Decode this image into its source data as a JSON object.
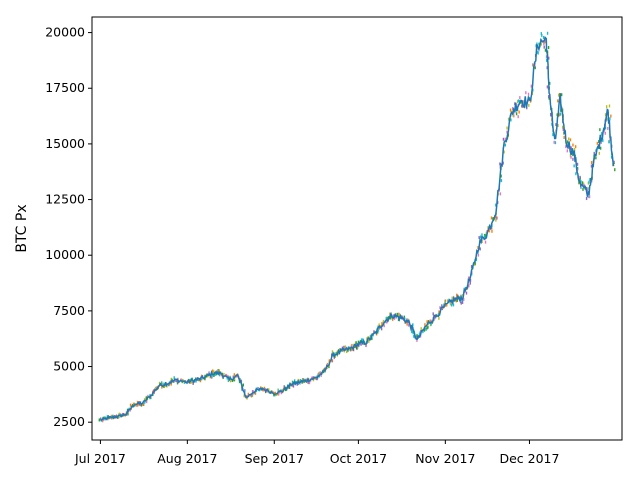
{
  "chart_data": {
    "type": "line",
    "title": "",
    "xlabel": "",
    "ylabel": "BTC Px",
    "x_ticks": [
      "Jul 2017",
      "Aug 2017",
      "Sep 2017",
      "Oct 2017",
      "Nov 2017",
      "Dec 2017"
    ],
    "y_ticks": [
      2500,
      5000,
      7500,
      10000,
      12500,
      15000,
      17500,
      20000
    ],
    "xlim": [
      "2017-06-28",
      "2018-01-03"
    ],
    "ylim": [
      1700,
      20700
    ],
    "grid": false,
    "legend": "none",
    "colors": {
      "main_line": "#1f77b4",
      "scatter_points": [
        "#2ca02c",
        "#ff7f0e",
        "#e377c2",
        "#bcbd22",
        "#17becf",
        "#9467bd"
      ]
    },
    "series": [
      {
        "x": [
          "2017-07-01",
          "2017-07-04",
          "2017-07-07",
          "2017-07-10",
          "2017-07-13",
          "2017-07-16",
          "2017-07-19",
          "2017-07-22",
          "2017-07-25",
          "2017-07-28",
          "2017-08-01",
          "2017-08-04",
          "2017-08-07",
          "2017-08-10",
          "2017-08-13",
          "2017-08-16",
          "2017-08-19",
          "2017-08-22",
          "2017-08-25",
          "2017-08-28",
          "2017-09-01",
          "2017-09-04",
          "2017-09-07",
          "2017-09-10",
          "2017-09-13",
          "2017-09-16",
          "2017-09-19",
          "2017-09-22",
          "2017-09-25",
          "2017-09-28",
          "2017-10-01",
          "2017-10-04",
          "2017-10-07",
          "2017-10-10",
          "2017-10-13",
          "2017-10-16",
          "2017-10-19",
          "2017-10-22",
          "2017-10-25",
          "2017-10-28",
          "2017-11-01",
          "2017-11-04",
          "2017-11-07",
          "2017-11-10",
          "2017-11-13",
          "2017-11-16",
          "2017-11-19",
          "2017-11-22",
          "2017-11-25",
          "2017-11-28",
          "2017-12-01",
          "2017-12-04",
          "2017-12-07",
          "2017-12-08",
          "2017-12-10",
          "2017-12-12",
          "2017-12-14",
          "2017-12-17",
          "2017-12-19",
          "2017-12-22",
          "2017-12-24",
          "2017-12-27",
          "2017-12-29",
          "2017-12-31"
        ],
        "y": [
          2600,
          2700,
          2750,
          2850,
          3300,
          3350,
          3700,
          4150,
          4250,
          4400,
          4300,
          4400,
          4500,
          4700,
          4700,
          4400,
          4600,
          3600,
          3900,
          4000,
          3800,
          3900,
          4200,
          4300,
          4400,
          4500,
          4800,
          5500,
          5700,
          5800,
          6000,
          6100,
          6500,
          7000,
          7300,
          7200,
          7000,
          6200,
          6800,
          7200,
          7700,
          8000,
          8100,
          9000,
          10500,
          11000,
          12000,
          15000,
          16500,
          17000,
          16800,
          19500,
          19700,
          17500,
          15000,
          17000,
          15200,
          14500,
          13200,
          12700,
          14200,
          15500,
          16500,
          14000
        ]
      }
    ]
  }
}
